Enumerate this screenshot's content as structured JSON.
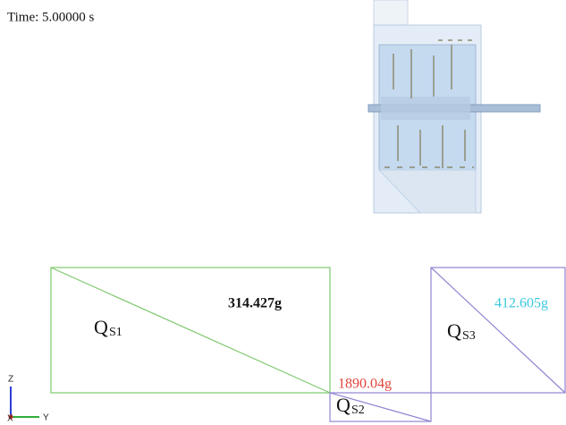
{
  "header": {
    "time": "Time: 5.00000 s"
  },
  "regions": [
    {
      "label": "Q",
      "subscript": "S1",
      "mass": "314.427g"
    },
    {
      "label": "Q",
      "subscript": "S2",
      "mass": "1890.04g"
    },
    {
      "label": "Q",
      "subscript": "S3",
      "mass": "412.605g"
    }
  ],
  "axes": {
    "z": "Z",
    "x": "X",
    "y": "Y"
  }
}
